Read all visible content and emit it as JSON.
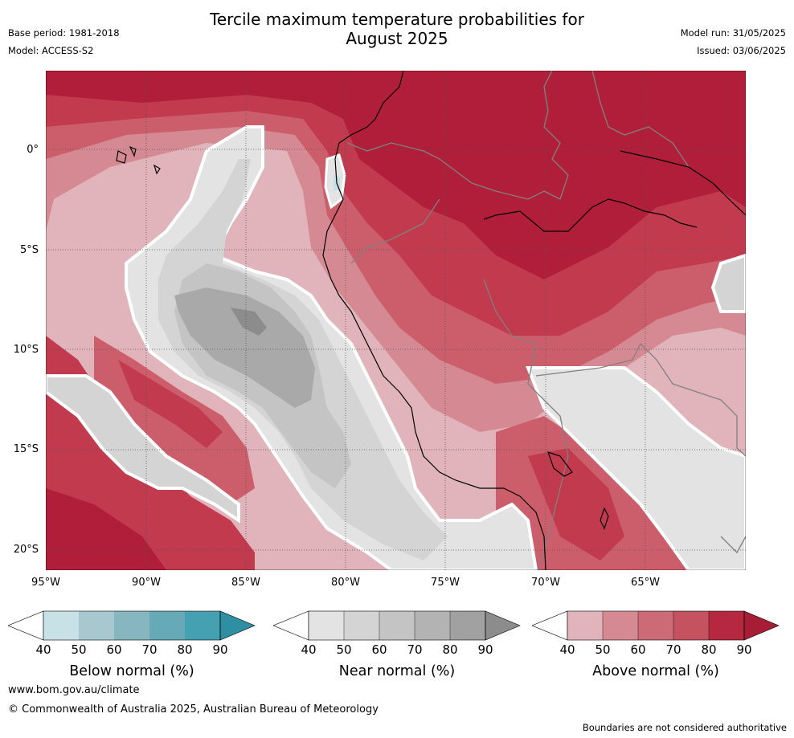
{
  "header": {
    "title_line1": "Tercile maximum temperature probabilities for",
    "title_line2": "August 2025",
    "base_period": "Base period: 1981-2018",
    "model": "Model: ACCESS-S2",
    "model_run": "Model run: 31/05/2025",
    "issued": "Issued: 03/06/2025"
  },
  "map": {
    "lat_labels": [
      "0°",
      "5°S",
      "10°S",
      "15°S",
      "20°S"
    ],
    "lon_labels": [
      "95°W",
      "90°W",
      "85°W",
      "80°W",
      "75°W",
      "70°W",
      "65°W"
    ],
    "colors": {
      "above_90": "#b11e3a",
      "above_80": "#c23a4e",
      "above_70": "#cc5e6b",
      "above_60": "#d58a93",
      "above_50": "#e0b4ba",
      "near_50": "#e3e3e3",
      "near_60": "#d4d4d4",
      "near_70": "#c4c4c4",
      "near_80": "#a9a9a9",
      "near_90": "#8c8c8c",
      "below_50": "#c5dfe4",
      "coast": "#000000",
      "border": "#808080",
      "category_boundary": "#ffffff"
    }
  },
  "legend": {
    "below": {
      "title": "Below normal (%)",
      "ticks": [
        "40",
        "50",
        "60",
        "70",
        "80",
        "90"
      ],
      "colors": [
        "#ffffff",
        "#c8e1e6",
        "#a7c8cf",
        "#87b5c0",
        "#66aab7",
        "#45a1b1",
        "#2e8fa2"
      ]
    },
    "near": {
      "title": "Near normal (%)",
      "ticks": [
        "40",
        "50",
        "60",
        "70",
        "80",
        "90"
      ],
      "colors": [
        "#ffffff",
        "#e3e3e3",
        "#d4d4d4",
        "#c4c4c4",
        "#b3b3b3",
        "#a1a1a1",
        "#8c8c8c"
      ]
    },
    "above": {
      "title": "Above normal (%)",
      "ticks": [
        "40",
        "50",
        "60",
        "70",
        "80",
        "90"
      ],
      "colors": [
        "#ffffff",
        "#e0b4ba",
        "#d58a93",
        "#cc6b76",
        "#c4525f",
        "#b5283f",
        "#a81d36"
      ]
    }
  },
  "footer": {
    "website": "www.bom.gov.au/climate",
    "copyright": "© Commonwealth of Australia 2025, Australian Bureau of Meteorology",
    "note": "Boundaries are not considered authoritative"
  }
}
